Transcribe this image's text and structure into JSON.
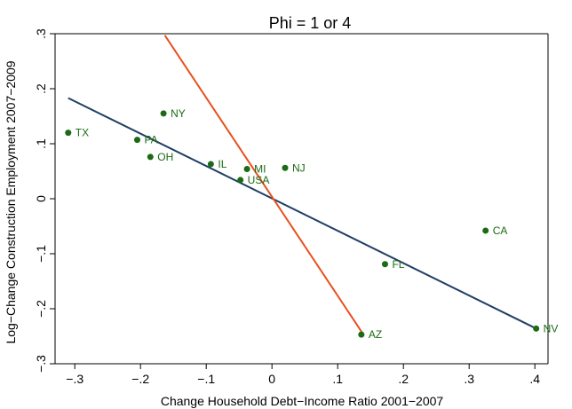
{
  "chart_data": {
    "type": "scatter",
    "title": "Phi = 1 or 4",
    "xlabel": "Change Household Debt−Income Ratio 2001−2007",
    "ylabel": "Log−Change Construction Employment 2007−2009",
    "xlim": [
      -0.33,
      0.42
    ],
    "ylim": [
      -0.3,
      0.3
    ],
    "xticks": [
      {
        "value": -0.3,
        "label": "−.3"
      },
      {
        "value": -0.2,
        "label": "−.2"
      },
      {
        "value": -0.1,
        "label": "−.1"
      },
      {
        "value": 0,
        "label": "0"
      },
      {
        "value": 0.1,
        "label": ".1"
      },
      {
        "value": 0.2,
        "label": ".2"
      },
      {
        "value": 0.3,
        "label": ".3"
      },
      {
        "value": 0.4,
        "label": ".4"
      }
    ],
    "yticks": [
      {
        "value": -0.3,
        "label": "−.3"
      },
      {
        "value": -0.2,
        "label": "−.2"
      },
      {
        "value": -0.1,
        "label": "−.1"
      },
      {
        "value": 0,
        "label": "0"
      },
      {
        "value": 0.1,
        "label": ".1"
      },
      {
        "value": 0.2,
        "label": ".2"
      },
      {
        "value": 0.3,
        "label": ".3"
      }
    ],
    "grid": false,
    "legend": "none",
    "points": [
      {
        "label": "TX",
        "x": -0.31,
        "y": 0.12
      },
      {
        "label": "NY",
        "x": -0.165,
        "y": 0.155
      },
      {
        "label": "PA",
        "x": -0.205,
        "y": 0.107
      },
      {
        "label": "OH",
        "x": -0.185,
        "y": 0.076
      },
      {
        "label": "IL",
        "x": -0.093,
        "y": 0.063
      },
      {
        "label": "MI",
        "x": -0.038,
        "y": 0.054
      },
      {
        "label": "USA",
        "x": -0.048,
        "y": 0.034
      },
      {
        "label": "NJ",
        "x": 0.02,
        "y": 0.056
      },
      {
        "label": "CA",
        "x": 0.325,
        "y": -0.058
      },
      {
        "label": "FL",
        "x": 0.172,
        "y": -0.119
      },
      {
        "label": "AZ",
        "x": 0.136,
        "y": -0.247
      },
      {
        "label": "NV",
        "x": 0.402,
        "y": -0.236
      }
    ],
    "lines": [
      {
        "x": [
          -0.31,
          0.402
        ],
        "y": [
          0.183,
          -0.236
        ],
        "color": "#1f3f66"
      },
      {
        "x": [
          -0.163,
          0.137
        ],
        "y": [
          0.297,
          -0.243
        ],
        "color": "#e8501f"
      }
    ],
    "point_color": "#1a6b12"
  }
}
